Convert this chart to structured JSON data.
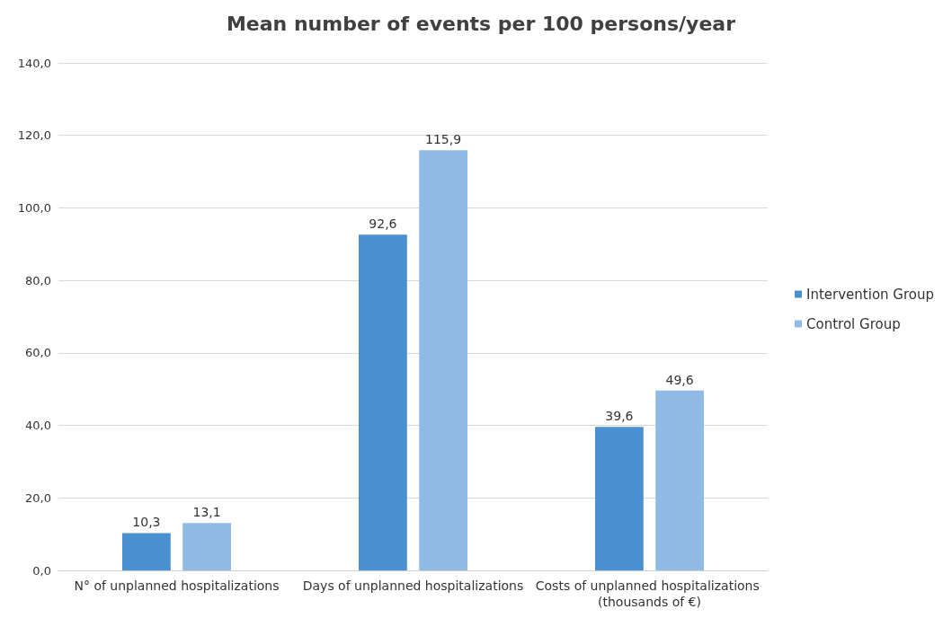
{
  "chart_data": {
    "type": "bar",
    "title": "Mean number of events per 100 persons/year",
    "categories": [
      "N° of unplanned hospitalizations",
      "Days of unplanned hospitalizations",
      "Costs of unplanned hospitalizations (thousands of €)"
    ],
    "series": [
      {
        "name": "Intervention Group",
        "color": "#4a8fd0",
        "values": [
          10.3,
          92.6,
          39.6
        ],
        "value_labels": [
          "10,3",
          "92,6",
          "39,6"
        ]
      },
      {
        "name": "Control Group",
        "color": "#90bbe4",
        "values": [
          13.1,
          115.9,
          49.6
        ],
        "value_labels": [
          "13,1",
          "115,9",
          "49,6"
        ]
      }
    ],
    "ylim": [
      0,
      140
    ],
    "yticks": [
      {
        "value": 0,
        "label": "0,0"
      },
      {
        "value": 20,
        "label": "20,0"
      },
      {
        "value": 40,
        "label": "40,0"
      },
      {
        "value": 60,
        "label": "60,0"
      },
      {
        "value": 80,
        "label": "80,0"
      },
      {
        "value": 100,
        "label": "100,0"
      },
      {
        "value": 120,
        "label": "120,0"
      },
      {
        "value": 140,
        "label": "140,0"
      }
    ],
    "grid": "y",
    "legend": "right"
  }
}
